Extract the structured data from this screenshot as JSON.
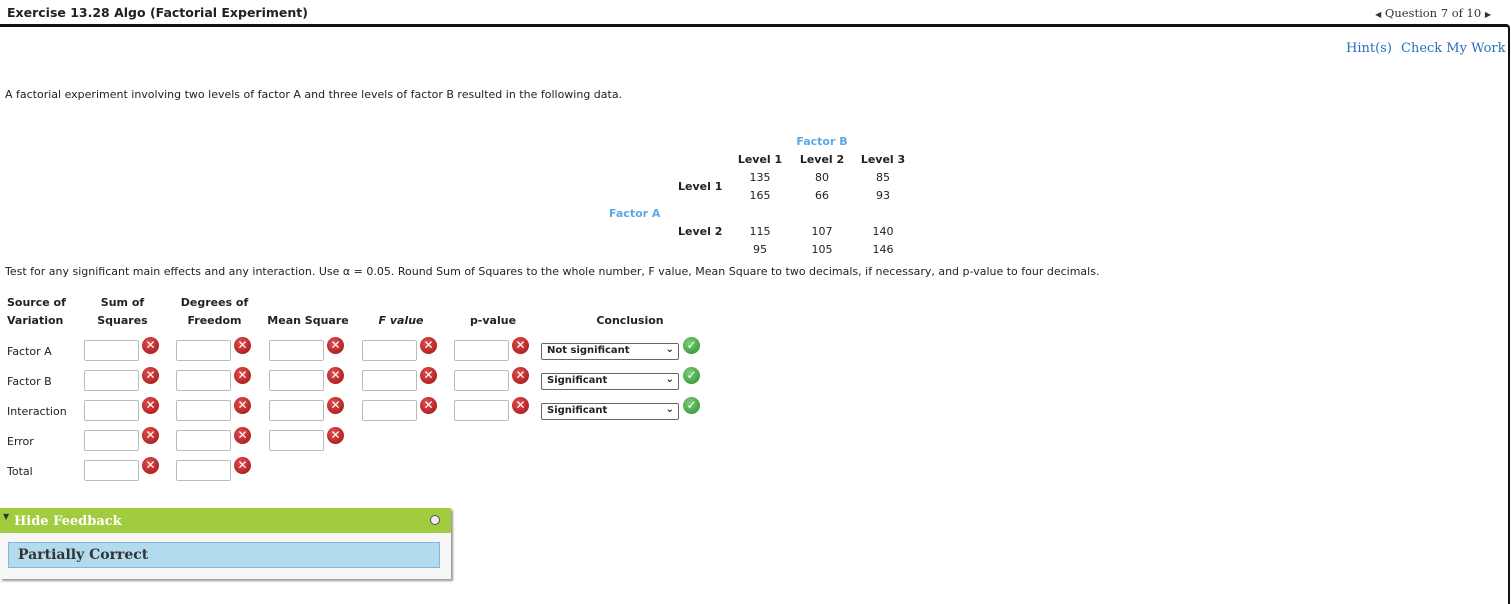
{
  "header": {
    "title": "Exercise 13.28 Algo (Factorial Experiment)",
    "question_nav": "Question 7 of 10"
  },
  "actions": {
    "hints": "Hint(s)",
    "check": "Check My Work"
  },
  "intro": "A factorial experiment involving two levels of factor A and three levels of factor B resulted in the following data.",
  "data_table": {
    "factor_b": "Factor B",
    "factor_a": "Factor A",
    "b_levels": [
      "Level 1",
      "Level 2",
      "Level 3"
    ],
    "a_levels": [
      {
        "label": "Level 1",
        "rows": [
          [
            "135",
            "80",
            "85"
          ],
          [
            "165",
            "66",
            "93"
          ]
        ]
      },
      {
        "label": "Level 2",
        "rows": [
          [
            "115",
            "107",
            "140"
          ],
          [
            "95",
            "105",
            "146"
          ]
        ]
      }
    ]
  },
  "instructions": "Test for any significant main effects and any interaction. Use α = 0.05. Round Sum of Squares to the whole number, F value, Mean Square to two decimals, if necessary, and p-value to four decimals.",
  "anova": {
    "headers": {
      "source": [
        "Source of",
        "Variation"
      ],
      "ss": [
        "Sum of",
        "Squares"
      ],
      "df": [
        "Degrees of",
        "Freedom"
      ],
      "ms": "Mean Square",
      "f": "F value",
      "p": "p-value",
      "conclusion": "Conclusion"
    },
    "rows": [
      {
        "label": "Factor A",
        "conclusion": "Not significant"
      },
      {
        "label": "Factor B",
        "conclusion": "Significant"
      },
      {
        "label": "Interaction",
        "conclusion": "Significant"
      },
      {
        "label": "Error"
      },
      {
        "label": "Total"
      }
    ]
  },
  "feedback": {
    "toggle": "Hide Feedback",
    "status": "Partially Correct"
  },
  "colors": {
    "accent": "#2a6ebb",
    "factor_label": "#5aa9e6",
    "feedback_bar": "#a2cc40",
    "feedback_box": "#b2dbee",
    "wrong": "#c0201f",
    "correct": "#3aa23a"
  }
}
